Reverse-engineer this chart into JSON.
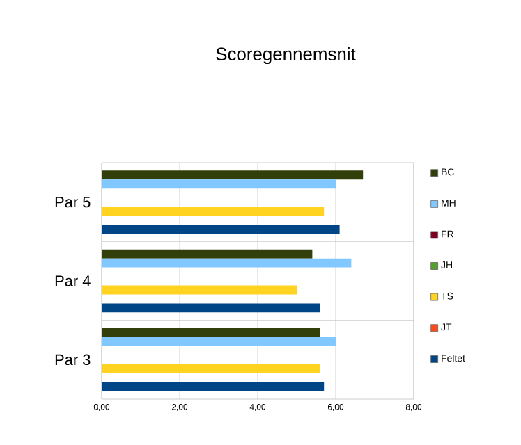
{
  "chart_data": {
    "type": "bar",
    "orientation": "horizontal",
    "title": "Scoregennemsnit",
    "categories": [
      "Par 5",
      "Par 4",
      "Par 3"
    ],
    "series": [
      {
        "name": "BC",
        "color": "#333f0a",
        "values": [
          6.7,
          5.4,
          5.6
        ]
      },
      {
        "name": "MH",
        "color": "#80c8ff",
        "values": [
          6.0,
          6.4,
          6.0
        ]
      },
      {
        "name": "FR",
        "color": "#7f0020",
        "values": [
          null,
          null,
          null
        ]
      },
      {
        "name": "JH",
        "color": "#57a12a",
        "values": [
          null,
          null,
          null
        ]
      },
      {
        "name": "TS",
        "color": "#ffd320",
        "values": [
          5.7,
          5.0,
          5.6
        ]
      },
      {
        "name": "JT",
        "color": "#ff4a1a",
        "values": [
          null,
          null,
          null
        ]
      },
      {
        "name": "Feltet",
        "color": "#004586",
        "values": [
          6.1,
          5.6,
          5.7
        ]
      }
    ],
    "xlim": [
      0,
      8
    ],
    "xticks": [
      {
        "value": 0,
        "label": "0,00"
      },
      {
        "value": 2,
        "label": "2,00"
      },
      {
        "value": 4,
        "label": "4,00"
      },
      {
        "value": 6,
        "label": "6,00"
      },
      {
        "value": 8,
        "label": "8,00"
      }
    ],
    "grid": true,
    "legend": "right"
  }
}
